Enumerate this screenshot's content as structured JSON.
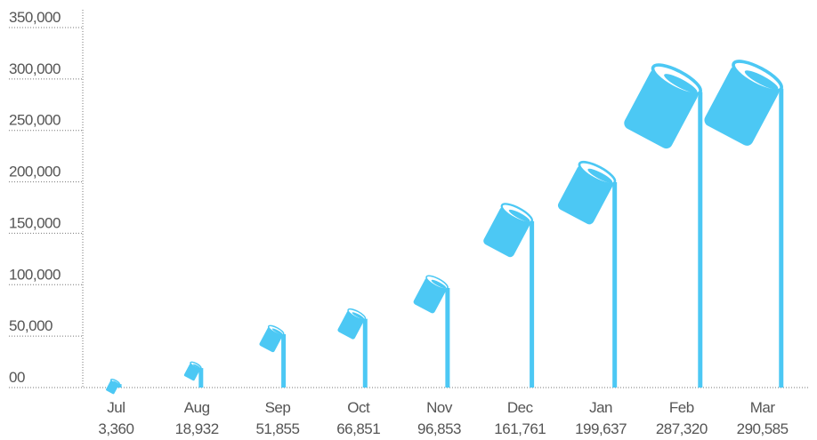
{
  "chart_data": {
    "type": "bar",
    "categories": [
      "Jul",
      "Aug",
      "Sep",
      "Oct",
      "Nov",
      "Dec",
      "Jan",
      "Feb",
      "Mar"
    ],
    "values": [
      3360,
      18932,
      51855,
      66851,
      96853,
      161761,
      199637,
      287320,
      290585
    ],
    "value_labels": [
      "3,360",
      "18,932",
      "51,855",
      "66,851",
      "96,853",
      "161,761",
      "199,637",
      "287,320",
      "290,585"
    ],
    "color": "#4cc8f4",
    "ylim": [
      0,
      350000
    ],
    "yticks": [
      {
        "value": 0,
        "label": "00"
      },
      {
        "value": 50000,
        "label": "50,000"
      },
      {
        "value": 100000,
        "label": "100,000"
      },
      {
        "value": 150000,
        "label": "150,000"
      },
      {
        "value": 200000,
        "label": "200,000"
      },
      {
        "value": 250000,
        "label": "250,000"
      },
      {
        "value": 300000,
        "label": "300,000"
      },
      {
        "value": 350000,
        "label": "350,000"
      }
    ],
    "grid": true
  }
}
